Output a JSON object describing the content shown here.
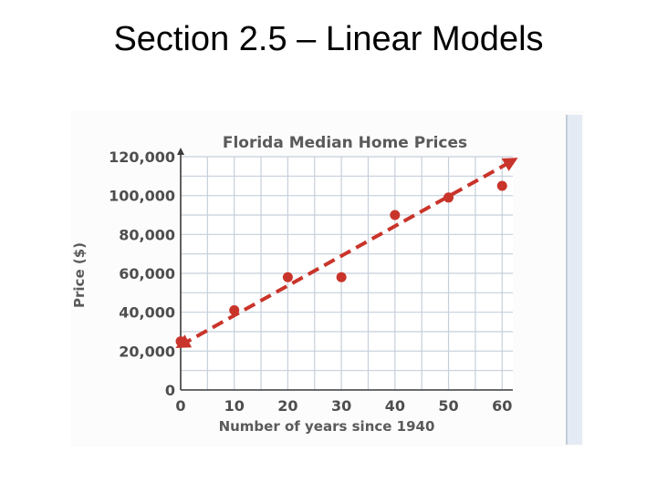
{
  "slide": {
    "title": "Section 2.5 – Linear Models"
  },
  "colors": {
    "background": "#ffffff",
    "plot_background": "#ffffff",
    "grid": "#c6cfdb",
    "axis": "#3c3c3c",
    "trend": "#c9342a",
    "points": "#c9342a",
    "text": "#4e4e4e"
  },
  "chart_data": {
    "type": "scatter",
    "title": "Florida Median Home Prices",
    "xlabel": "Number of years since 1940",
    "ylabel": "Price ($)",
    "x_ticks": [
      "0",
      "10",
      "20",
      "30",
      "40",
      "50",
      "60"
    ],
    "y_ticks": [
      "0",
      "20,000",
      "40,000",
      "60,000",
      "80,000",
      "100,000",
      "120,000"
    ],
    "xlim": [
      0,
      62
    ],
    "ylim": [
      0,
      120000
    ],
    "grid": true,
    "series": [
      {
        "x": [
          0,
          10,
          20,
          30,
          40,
          50,
          60
        ],
        "y": [
          25000,
          41000,
          58000,
          58000,
          90000,
          99000,
          105000
        ]
      }
    ],
    "trend_line": {
      "x": [
        0,
        62
      ],
      "y": [
        23000,
        118000
      ],
      "style": "dashed",
      "arrows": "both"
    }
  }
}
